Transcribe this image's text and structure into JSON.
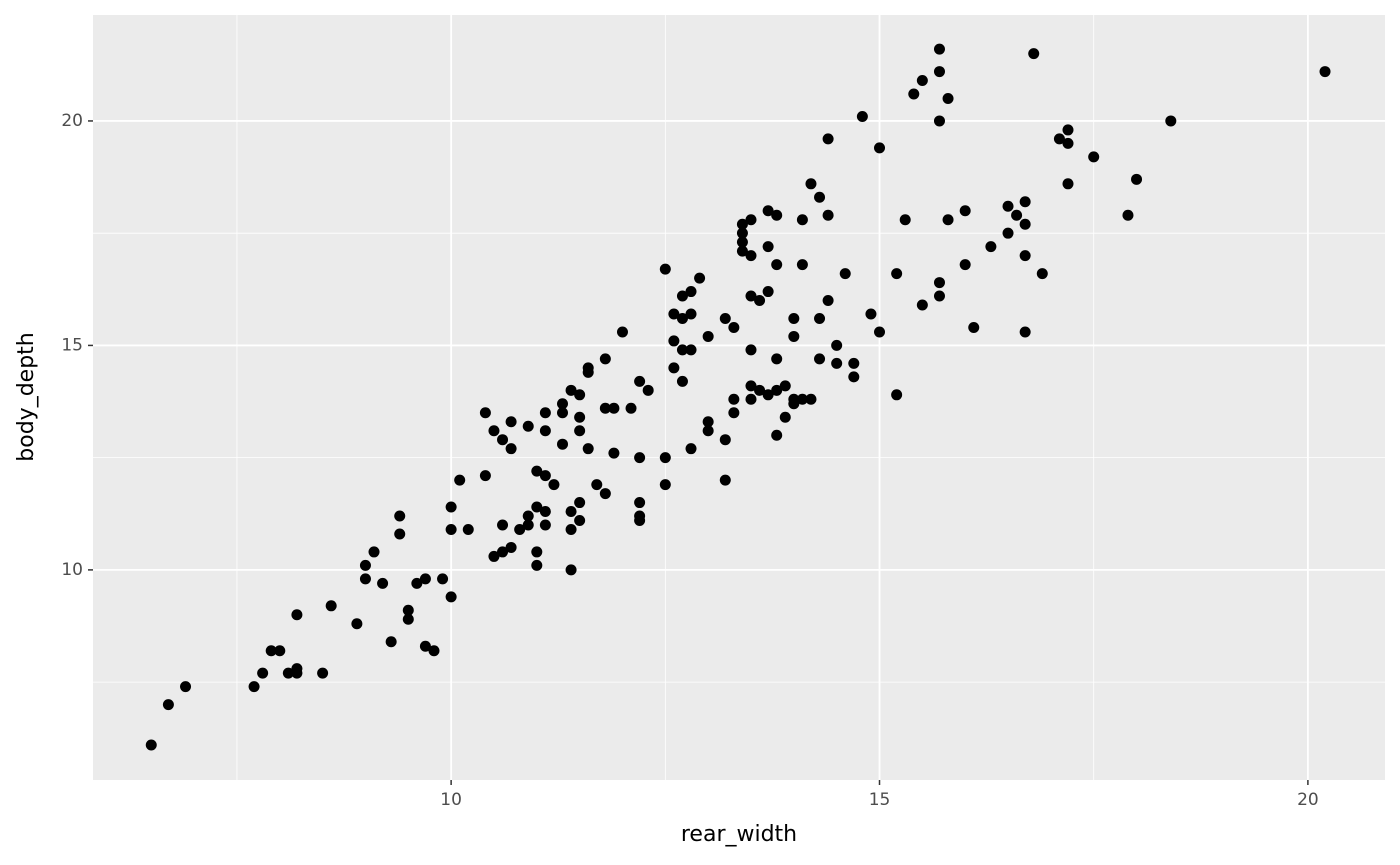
{
  "chart_data": {
    "type": "scatter",
    "xlabel": "rear_width",
    "ylabel": "body_depth",
    "x": [
      6.5,
      6.7,
      6.9,
      7.7,
      7.8,
      7.9,
      8.0,
      8.1,
      8.2,
      8.2,
      8.2,
      8.5,
      8.6,
      8.9,
      9.0,
      9.0,
      9.1,
      9.2,
      9.3,
      9.4,
      9.4,
      9.5,
      9.5,
      9.6,
      9.7,
      9.7,
      9.8,
      9.9,
      10.0,
      10.0,
      10.0,
      10.1,
      10.2,
      10.4,
      10.4,
      10.5,
      10.5,
      10.6,
      10.6,
      10.6,
      10.7,
      10.7,
      10.7,
      10.8,
      10.9,
      10.9,
      10.9,
      11.0,
      11.0,
      11.0,
      11.0,
      11.1,
      11.1,
      11.1,
      11.1,
      11.1,
      11.2,
      11.3,
      11.3,
      11.3,
      11.4,
      11.4,
      11.4,
      11.4,
      11.5,
      11.5,
      11.5,
      11.5,
      11.5,
      11.6,
      11.6,
      11.6,
      11.7,
      11.8,
      11.8,
      11.8,
      11.9,
      11.9,
      12.0,
      12.1,
      12.2,
      12.2,
      12.2,
      12.2,
      12.2,
      12.3,
      12.5,
      12.5,
      12.5,
      12.6,
      12.6,
      12.6,
      12.7,
      12.7,
      12.7,
      12.7,
      12.8,
      12.8,
      12.8,
      12.8,
      12.9,
      13.0,
      13.0,
      13.0,
      13.2,
      13.2,
      13.2,
      13.3,
      13.3,
      13.3,
      13.4,
      13.4,
      13.4,
      13.4,
      13.5,
      13.5,
      13.5,
      13.5,
      13.5,
      13.5,
      13.6,
      13.6,
      13.7,
      13.7,
      13.7,
      13.7,
      13.8,
      13.8,
      13.8,
      13.8,
      13.8,
      13.9,
      13.9,
      14.0,
      14.0,
      14.0,
      14.0,
      14.1,
      14.1,
      14.1,
      14.2,
      14.2,
      14.3,
      14.3,
      14.3,
      14.4,
      14.4,
      14.4,
      14.5,
      14.5,
      14.6,
      14.7,
      14.7,
      14.8,
      14.9,
      15.0,
      15.0,
      15.2,
      15.2,
      15.3,
      15.4,
      15.5,
      15.5,
      15.7,
      15.7,
      15.7,
      15.7,
      15.7,
      15.8,
      15.8,
      16.0,
      16.0,
      16.1,
      16.3,
      16.5,
      16.5,
      16.6,
      16.7,
      16.7,
      16.7,
      16.7,
      16.8,
      16.9,
      17.1,
      17.2,
      17.2,
      17.2,
      17.5,
      17.9,
      18.0,
      18.4,
      20.2
    ],
    "y": [
      6.1,
      7.0,
      7.4,
      7.4,
      7.7,
      8.2,
      8.2,
      7.7,
      7.7,
      7.8,
      9.0,
      7.7,
      9.2,
      8.8,
      10.1,
      9.8,
      10.4,
      9.7,
      8.4,
      11.2,
      10.8,
      9.1,
      8.9,
      9.7,
      9.8,
      8.3,
      8.2,
      9.8,
      10.9,
      11.4,
      9.4,
      12.0,
      10.9,
      13.5,
      12.1,
      13.1,
      10.3,
      12.9,
      11.0,
      10.4,
      13.3,
      12.7,
      10.5,
      10.9,
      13.2,
      11.2,
      11.0,
      12.2,
      11.4,
      10.4,
      10.1,
      13.5,
      13.1,
      12.1,
      11.3,
      11.0,
      11.9,
      13.7,
      13.5,
      12.8,
      14.0,
      11.3,
      10.9,
      10.0,
      13.9,
      13.4,
      13.1,
      11.5,
      11.1,
      14.5,
      14.4,
      12.7,
      11.9,
      14.7,
      13.6,
      11.7,
      13.6,
      12.6,
      15.3,
      13.6,
      14.2,
      12.5,
      11.5,
      11.2,
      11.1,
      14.0,
      16.7,
      12.5,
      11.9,
      14.5,
      15.7,
      15.1,
      16.1,
      15.6,
      14.2,
      14.9,
      16.2,
      15.7,
      14.9,
      12.7,
      16.5,
      15.2,
      13.3,
      13.1,
      15.6,
      12.9,
      12.0,
      15.4,
      13.5,
      13.8,
      17.7,
      17.5,
      17.3,
      17.1,
      17.8,
      17.0,
      16.1,
      14.9,
      14.1,
      13.8,
      16.0,
      14.0,
      18.0,
      17.2,
      16.2,
      13.9,
      17.9,
      16.8,
      14.7,
      14.0,
      13.0,
      14.1,
      13.4,
      15.6,
      15.2,
      13.8,
      13.7,
      17.8,
      16.8,
      13.8,
      18.6,
      13.8,
      18.3,
      15.6,
      14.7,
      19.6,
      17.9,
      16.0,
      15.0,
      14.6,
      16.6,
      14.6,
      14.3,
      20.1,
      15.7,
      19.4,
      15.3,
      16.6,
      13.9,
      17.8,
      20.6,
      20.9,
      15.9,
      21.6,
      21.1,
      20.0,
      16.4,
      16.1,
      20.5,
      17.8,
      18.0,
      16.8,
      15.4,
      17.2,
      17.5,
      18.1,
      17.9,
      18.2,
      17.7,
      17.0,
      15.3,
      21.5,
      16.6,
      19.6,
      19.8,
      19.5,
      18.6,
      19.2,
      17.9,
      18.7,
      20.0,
      21.1
    ],
    "color": "#000000",
    "xlim": [
      5.82,
      20.9
    ],
    "ylim": [
      5.32,
      22.36
    ],
    "xticks": [
      10,
      15,
      20
    ],
    "yticks": [
      10,
      15,
      20
    ],
    "xminor": [
      7.5,
      12.5,
      17.5
    ],
    "yminor": [
      7.5,
      12.5,
      17.5
    ],
    "grid": true,
    "panel_color": "#ebebeb"
  }
}
